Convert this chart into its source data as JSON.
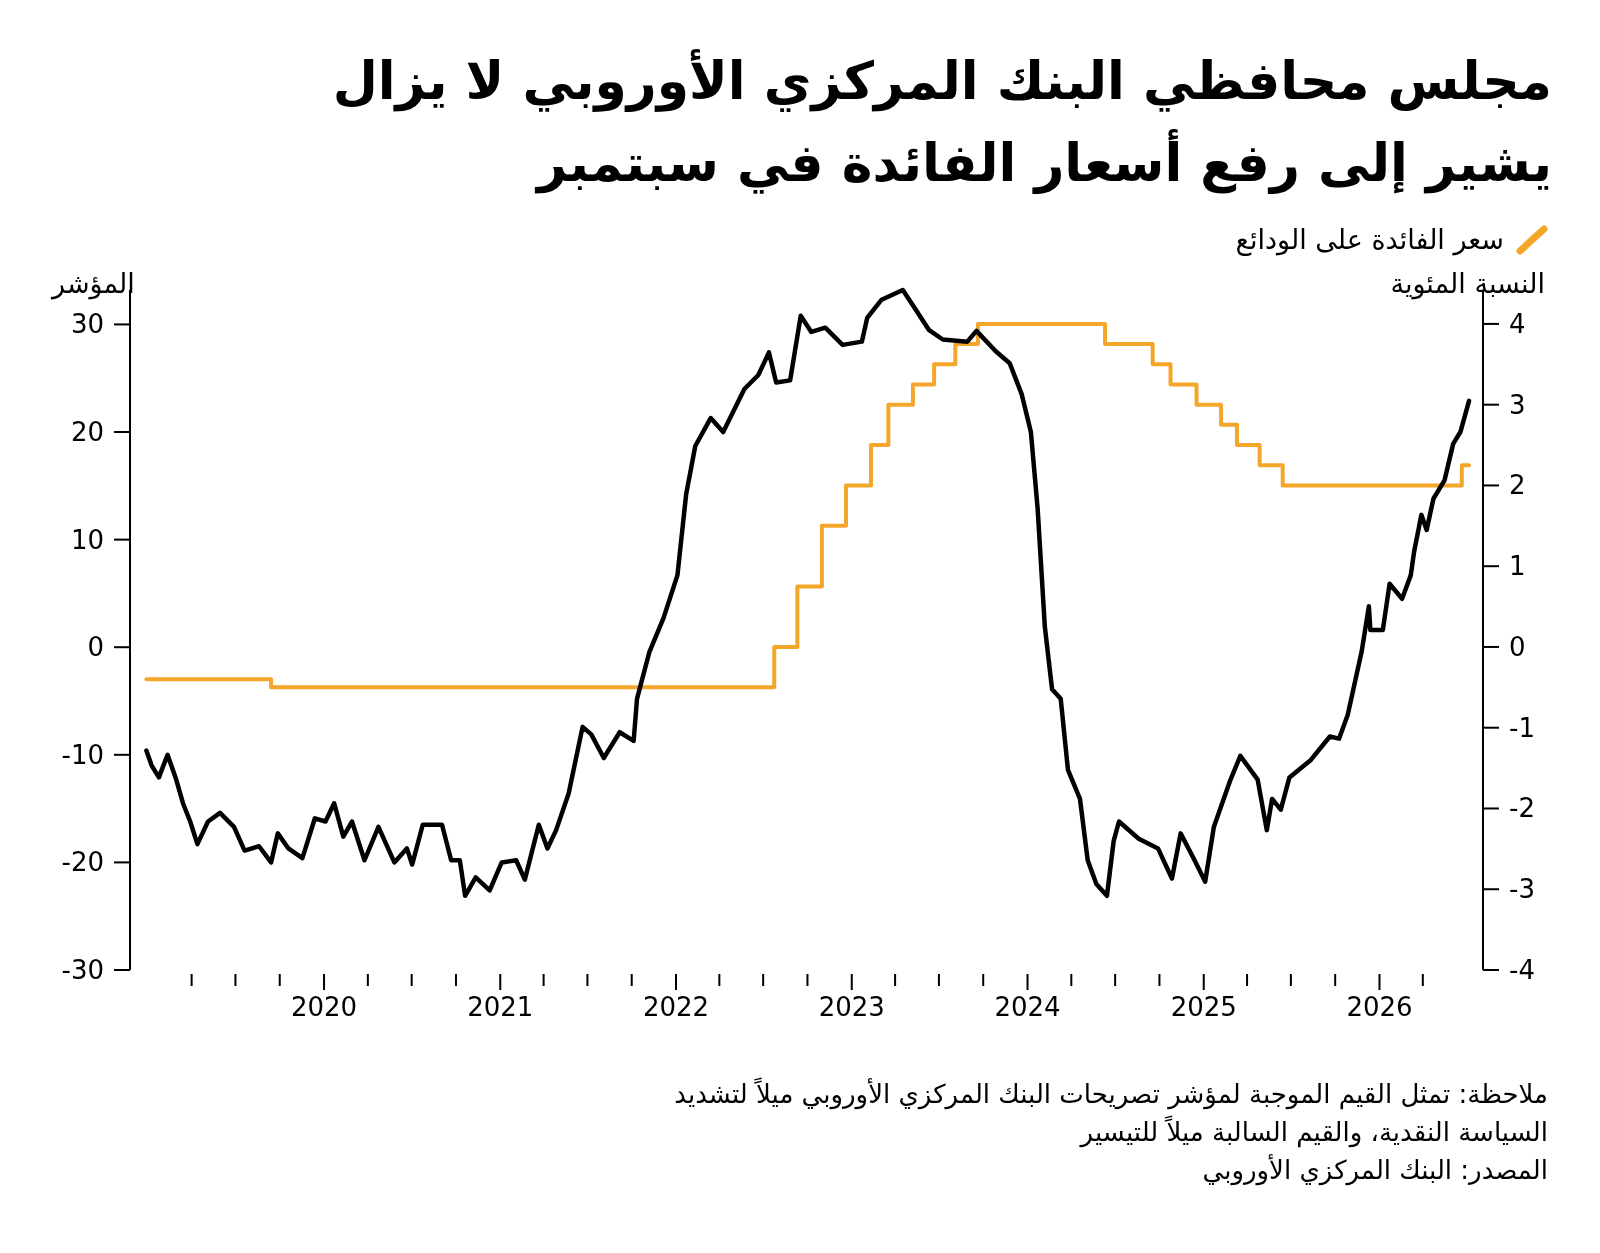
{
  "chart_data": {
    "type": "line",
    "title": "مجلس محافظي البنك المركزي الأوروبي لا يزال يشير إلى رفع أسعار الفائدة في سبتمبر",
    "ylabel": "المؤشر",
    "y2label": "النسبة المئوية",
    "legend": "top right",
    "annotations": [
      "ملاحظة: تمثل القيم الموجبة لمؤشر تصريحات البنك المركزي الأوروبي ميلاً لتشديد السياسة النقدية، والقيم السالبة ميلاً للتيسير",
      "المصدر: البنك المركزي الأوروبي"
    ],
    "xlim": [
      "2018-11-24",
      "2026-08-04"
    ],
    "xticks": [
      {
        "value": "2019-04-01",
        "label": null
      },
      {
        "value": "2019-07-01",
        "label": null
      },
      {
        "value": "2019-10-01",
        "label": null
      },
      {
        "value": "2020-01-01",
        "label": "2020"
      },
      {
        "value": "2020-04-01",
        "label": null
      },
      {
        "value": "2020-07-01",
        "label": null
      },
      {
        "value": "2020-10-01",
        "label": null
      },
      {
        "value": "2021-01-01",
        "label": "2021"
      },
      {
        "value": "2021-04-01",
        "label": null
      },
      {
        "value": "2021-07-01",
        "label": null
      },
      {
        "value": "2021-10-01",
        "label": null
      },
      {
        "value": "2022-01-01",
        "label": "2022"
      },
      {
        "value": "2022-04-01",
        "label": null
      },
      {
        "value": "2022-07-01",
        "label": null
      },
      {
        "value": "2022-10-01",
        "label": null
      },
      {
        "value": "2023-01-01",
        "label": "2023"
      },
      {
        "value": "2023-04-01",
        "label": null
      },
      {
        "value": "2023-07-01",
        "label": null
      },
      {
        "value": "2023-10-01",
        "label": null
      },
      {
        "value": "2024-01-01",
        "label": "2024"
      },
      {
        "value": "2024-04-01",
        "label": null
      },
      {
        "value": "2024-07-01",
        "label": null
      },
      {
        "value": "2024-10-01",
        "label": null
      },
      {
        "value": "2025-01-01",
        "label": "2025"
      },
      {
        "value": "2025-04-01",
        "label": null
      },
      {
        "value": "2025-07-01",
        "label": null
      },
      {
        "value": "2025-10-01",
        "label": null
      },
      {
        "value": "2026-01-01",
        "label": "2026"
      },
      {
        "value": "2026-04-01",
        "label": null
      }
    ],
    "ylim": [
      -30,
      33.2
    ],
    "yticks": [
      -30,
      -20,
      -10,
      0,
      10,
      20,
      30
    ],
    "y2lim": [
      -4,
      4.42
    ],
    "y2ticks": [
      -4,
      -3,
      -2,
      -1,
      0,
      1,
      2,
      3,
      4
    ],
    "series": [
      {
        "type": "step",
        "name": "سعر الفائدة على الودائع",
        "color": "#f4a62a",
        "axis": "y2",
        "x": [
          "2018-12-28",
          "2019-09-13",
          "2022-07-24",
          "2022-09-10",
          "2022-10-31",
          "2022-12-20",
          "2023-02-10",
          "2023-03-18",
          "2023-05-08",
          "2023-06-21",
          "2023-08-04",
          "2023-09-20",
          "2024-06-10",
          "2024-09-17",
          "2024-10-24",
          "2024-12-17",
          "2025-02-06",
          "2025-03-11",
          "2025-04-27",
          "2025-06-14",
          "2026-06-21",
          "2026-07-06"
        ],
        "values": [
          -0.4,
          -0.5,
          0,
          0.75,
          1.5,
          2,
          2.5,
          3,
          3.25,
          3.5,
          3.75,
          4,
          3.75,
          3.5,
          3.25,
          3,
          2.75,
          2.5,
          2.25,
          2,
          2.25,
          2.25
        ]
      },
      {
        "type": "line",
        "color": "#000000",
        "x": [
          "2018-12-28",
          "2019-01-08",
          "2019-01-23",
          "2019-02-10",
          "2019-02-28",
          "2019-03-14",
          "2019-03-29",
          "2019-04-13",
          "2019-05-05",
          "2019-05-30",
          "2019-06-28",
          "2019-07-20",
          "2019-08-19",
          "2019-09-13",
          "2019-09-27",
          "2019-10-19",
          "2019-11-17",
          "2019-12-13",
          "2020-01-04",
          "2020-01-22",
          "2020-02-10",
          "2020-02-28",
          "2020-03-25",
          "2020-04-23",
          "2020-05-26",
          "2020-06-21",
          "2020-07-02",
          "2020-07-24",
          "2020-09-02",
          "2020-09-21",
          "2020-10-09",
          "2020-10-20",
          "2020-11-11",
          "2020-12-10",
          "2021-01-04",
          "2021-02-03",
          "2021-02-21",
          "2021-03-22",
          "2021-04-09",
          "2021-04-27",
          "2021-05-23",
          "2021-06-21",
          "2021-07-09",
          "2021-08-04",
          "2021-09-06",
          "2021-10-05",
          "2021-10-12",
          "2021-11-07",
          "2021-12-06",
          "2022-01-04",
          "2022-01-22",
          "2022-02-10",
          "2022-03-14",
          "2022-04-09",
          "2022-05-23",
          "2022-06-21",
          "2022-07-13",
          "2022-07-28",
          "2022-08-26",
          "2022-09-17",
          "2022-10-09",
          "2022-11-07",
          "2022-12-13",
          "2023-01-22",
          "2023-02-02",
          "2023-03-04",
          "2023-04-17",
          "2023-05-12",
          "2023-06-10",
          "2023-07-09",
          "2023-08-29",
          "2023-09-17",
          "2023-10-27",
          "2023-11-25",
          "2023-12-20",
          "2024-01-08",
          "2024-01-22",
          "2024-02-06",
          "2024-02-21",
          "2024-03-10",
          "2024-03-25",
          "2024-04-19",
          "2024-05-05",
          "2024-05-23",
          "2024-06-14",
          "2024-06-28",
          "2024-07-09",
          "2024-08-19",
          "2024-09-28",
          "2024-10-27",
          "2024-11-14",
          "2024-12-13",
          "2025-01-04",
          "2025-01-22",
          "2025-02-24",
          "2025-03-18",
          "2025-04-23",
          "2025-05-12",
          "2025-05-23",
          "2025-06-10",
          "2025-06-28",
          "2025-08-11",
          "2025-09-20",
          "2025-10-09",
          "2025-10-27",
          "2025-11-25",
          "2025-12-10",
          "2025-12-13",
          "2026-01-08",
          "2026-01-22",
          "2026-02-17",
          "2026-03-07",
          "2026-03-14",
          "2026-03-29",
          "2026-04-09",
          "2026-04-23",
          "2026-05-16",
          "2026-06-03",
          "2026-06-18",
          "2026-07-06"
        ],
        "values": [
          -9.6,
          -11.0,
          -12.1,
          -10.0,
          -12.3,
          -14.5,
          -16.2,
          -18.3,
          -16.2,
          -15.4,
          -16.7,
          -18.9,
          -18.5,
          -20.0,
          -17.3,
          -18.7,
          -19.6,
          -15.9,
          -16.2,
          -14.5,
          -17.6,
          -16.2,
          -19.8,
          -16.7,
          -20.0,
          -18.7,
          -20.2,
          -16.5,
          -16.5,
          -19.8,
          -19.8,
          -23.1,
          -21.4,
          -22.6,
          -20.0,
          -19.8,
          -21.6,
          -16.5,
          -18.7,
          -17.0,
          -13.6,
          -7.4,
          -8.1,
          -10.3,
          -7.9,
          -8.7,
          -4.8,
          -0.4,
          2.7,
          6.7,
          14.2,
          18.7,
          21.3,
          20.0,
          24.0,
          25.3,
          27.4,
          24.6,
          24.8,
          30.8,
          29.3,
          29.7,
          28.1,
          28.4,
          30.6,
          32.3,
          33.2,
          31.5,
          29.5,
          28.6,
          28.4,
          29.4,
          27.5,
          26.4,
          23.5,
          20.0,
          12.9,
          1.9,
          -3.9,
          -4.8,
          -11.4,
          -14.1,
          -19.8,
          -22.0,
          -23.1,
          -18.0,
          -16.2,
          -17.8,
          -18.7,
          -21.5,
          -17.3,
          -19.8,
          -21.8,
          -16.7,
          -12.5,
          -10.1,
          -12.3,
          -17.0,
          -14.1,
          -15.1,
          -12.1,
          -10.5,
          -8.3,
          -8.5,
          -6.3,
          -0.4,
          3.8,
          1.6,
          1.6,
          5.9,
          4.5,
          6.7,
          8.9,
          12.3,
          10.9,
          13.8,
          15.5,
          18.9,
          20.0,
          22.9
        ]
      }
    ]
  }
}
